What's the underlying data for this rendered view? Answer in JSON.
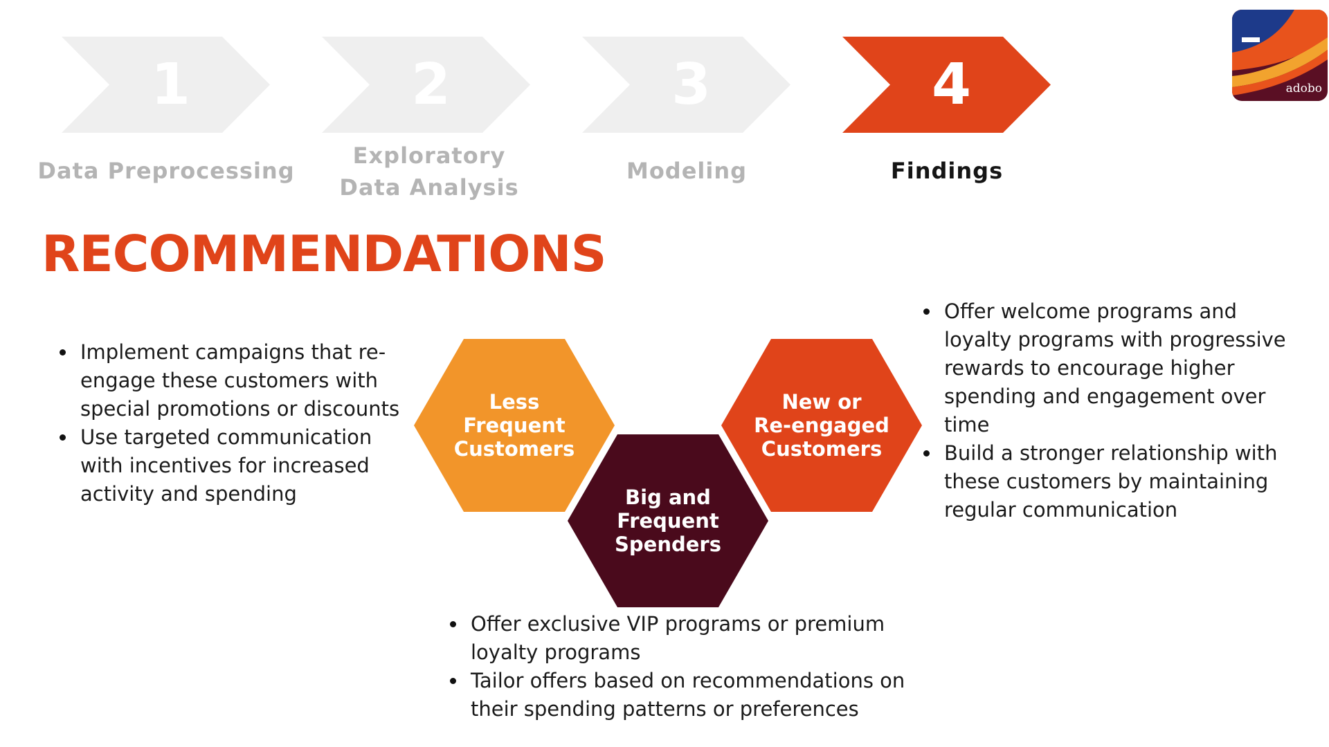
{
  "steps": [
    {
      "number": "1",
      "label": "Data Preprocessing",
      "active": false
    },
    {
      "number": "2",
      "label": "Exploratory\nData Analysis",
      "active": false
    },
    {
      "number": "3",
      "label": "Modeling",
      "active": false
    },
    {
      "number": "4",
      "label": "Findings",
      "active": true
    }
  ],
  "colors": {
    "accent": "#e0441a",
    "inactive_step": "#efefef",
    "hex_orange": "#f2952a",
    "hex_red": "#e0441a",
    "hex_maroon": "#4a0a1c"
  },
  "logo": {
    "text": "adobo"
  },
  "title": "RECOMMENDATIONS",
  "segments": {
    "less_frequent": {
      "label": "Less\nFrequent\nCustomers",
      "bullets": [
        "Implement campaigns that re-engage these customers with special promotions or discounts",
        "Use targeted communication with incentives for increased activity and spending"
      ]
    },
    "big_frequent": {
      "label": "Big and\nFrequent\nSpenders",
      "bullets": [
        "Offer exclusive VIP programs or premium loyalty programs",
        "Tailor offers based on recommendations on their spending patterns or preferences"
      ]
    },
    "new_reengaged": {
      "label": "New or\nRe-engaged\nCustomers",
      "bullets": [
        "Offer welcome programs and loyalty programs with progressive rewards to encourage higher spending and engagement over time",
        "Build a stronger relationship with these customers by maintaining regular communication"
      ]
    }
  }
}
